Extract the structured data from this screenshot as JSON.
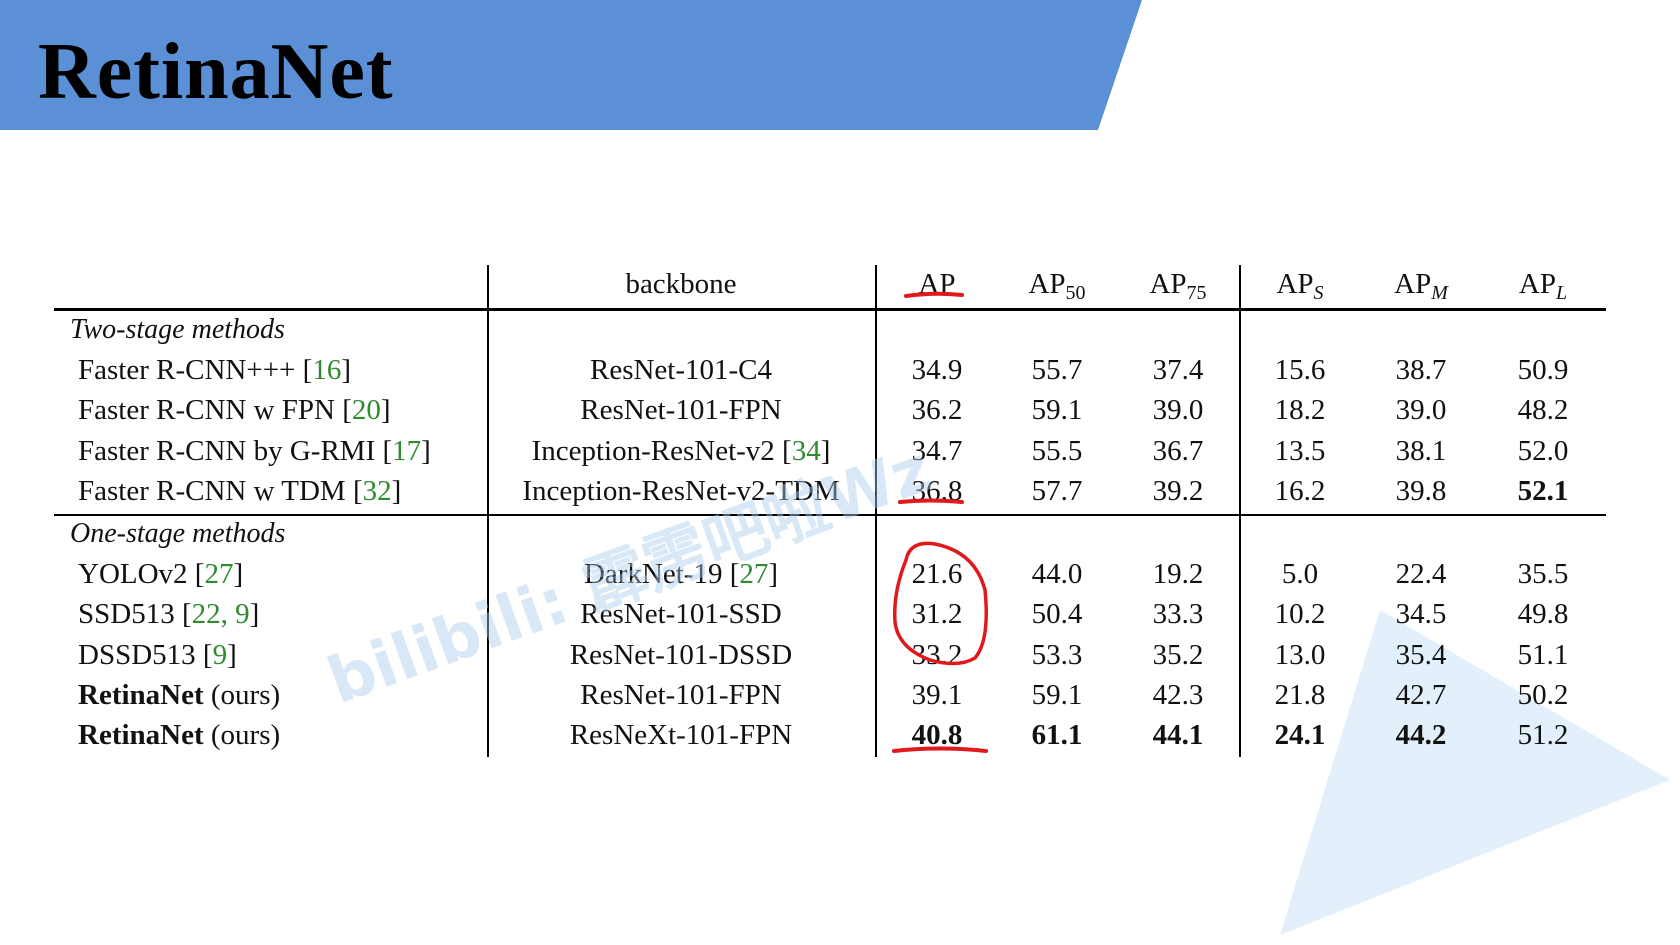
{
  "slide": {
    "title": "RetinaNet",
    "colors": {
      "banner": "#5b8fd6",
      "triangle": "#e3f0fb",
      "ref": "#2e8b2e",
      "annotation": "#e0191c"
    }
  },
  "table": {
    "headers": {
      "backbone": "backbone",
      "ap": "AP",
      "ap50": {
        "base": "AP",
        "sub": "50"
      },
      "ap75": {
        "base": "AP",
        "sub": "75"
      },
      "aps": {
        "base": "AP",
        "sub": "S"
      },
      "apm": {
        "base": "AP",
        "sub": "M"
      },
      "apl": {
        "base": "AP",
        "sub": "L"
      }
    },
    "groups": [
      {
        "label": "Two-stage methods",
        "rows": [
          {
            "method": "Faster R-CNN+++",
            "method_bold": false,
            "suffix": "",
            "refs": "16",
            "backbone": "ResNet-101-C4",
            "backbone_ref": "",
            "values": [
              "34.9",
              "55.7",
              "37.4",
              "15.6",
              "38.7",
              "50.9"
            ],
            "bold": [
              false,
              false,
              false,
              false,
              false,
              false
            ]
          },
          {
            "method": "Faster R-CNN w FPN",
            "method_bold": false,
            "suffix": "",
            "refs": "20",
            "backbone": "ResNet-101-FPN",
            "backbone_ref": "",
            "values": [
              "36.2",
              "59.1",
              "39.0",
              "18.2",
              "39.0",
              "48.2"
            ],
            "bold": [
              false,
              false,
              false,
              false,
              false,
              false
            ]
          },
          {
            "method": "Faster R-CNN by G-RMI",
            "method_bold": false,
            "suffix": "",
            "refs": "17",
            "backbone": "Inception-ResNet-v2",
            "backbone_ref": "34",
            "values": [
              "34.7",
              "55.5",
              "36.7",
              "13.5",
              "38.1",
              "52.0"
            ],
            "bold": [
              false,
              false,
              false,
              false,
              false,
              false
            ]
          },
          {
            "method": "Faster R-CNN w TDM",
            "method_bold": false,
            "suffix": "",
            "refs": "32",
            "backbone": "Inception-ResNet-v2-TDM",
            "backbone_ref": "",
            "values": [
              "36.8",
              "57.7",
              "39.2",
              "16.2",
              "39.8",
              "52.1"
            ],
            "bold": [
              false,
              false,
              false,
              false,
              false,
              true
            ]
          }
        ]
      },
      {
        "label": "One-stage methods",
        "rows": [
          {
            "method": "YOLOv2",
            "method_bold": false,
            "suffix": "",
            "refs": "27",
            "backbone": "DarkNet-19",
            "backbone_ref": "27",
            "values": [
              "21.6",
              "44.0",
              "19.2",
              "5.0",
              "22.4",
              "35.5"
            ],
            "bold": [
              false,
              false,
              false,
              false,
              false,
              false
            ]
          },
          {
            "method": "SSD513",
            "method_bold": false,
            "suffix": "",
            "refs": "22, 9",
            "backbone": "ResNet-101-SSD",
            "backbone_ref": "",
            "values": [
              "31.2",
              "50.4",
              "33.3",
              "10.2",
              "34.5",
              "49.8"
            ],
            "bold": [
              false,
              false,
              false,
              false,
              false,
              false
            ]
          },
          {
            "method": "DSSD513",
            "method_bold": false,
            "suffix": "",
            "refs": "9",
            "backbone": "ResNet-101-DSSD",
            "backbone_ref": "",
            "values": [
              "33.2",
              "53.3",
              "35.2",
              "13.0",
              "35.4",
              "51.1"
            ],
            "bold": [
              false,
              false,
              false,
              false,
              false,
              false
            ]
          },
          {
            "method": "RetinaNet",
            "method_bold": true,
            "suffix": " (ours)",
            "refs": "",
            "backbone": "ResNet-101-FPN",
            "backbone_ref": "",
            "values": [
              "39.1",
              "59.1",
              "42.3",
              "21.8",
              "42.7",
              "50.2"
            ],
            "bold": [
              false,
              false,
              false,
              false,
              false,
              false
            ]
          },
          {
            "method": "RetinaNet",
            "method_bold": true,
            "suffix": " (ours)",
            "refs": "",
            "backbone": "ResNeXt-101-FPN",
            "backbone_ref": "",
            "values": [
              "40.8",
              "61.1",
              "44.1",
              "24.1",
              "44.2",
              "51.2"
            ],
            "bold": [
              true,
              true,
              true,
              true,
              true,
              false
            ]
          }
        ]
      }
    ]
  },
  "watermark": "bilibili: 霹雳吧啦Wz"
}
